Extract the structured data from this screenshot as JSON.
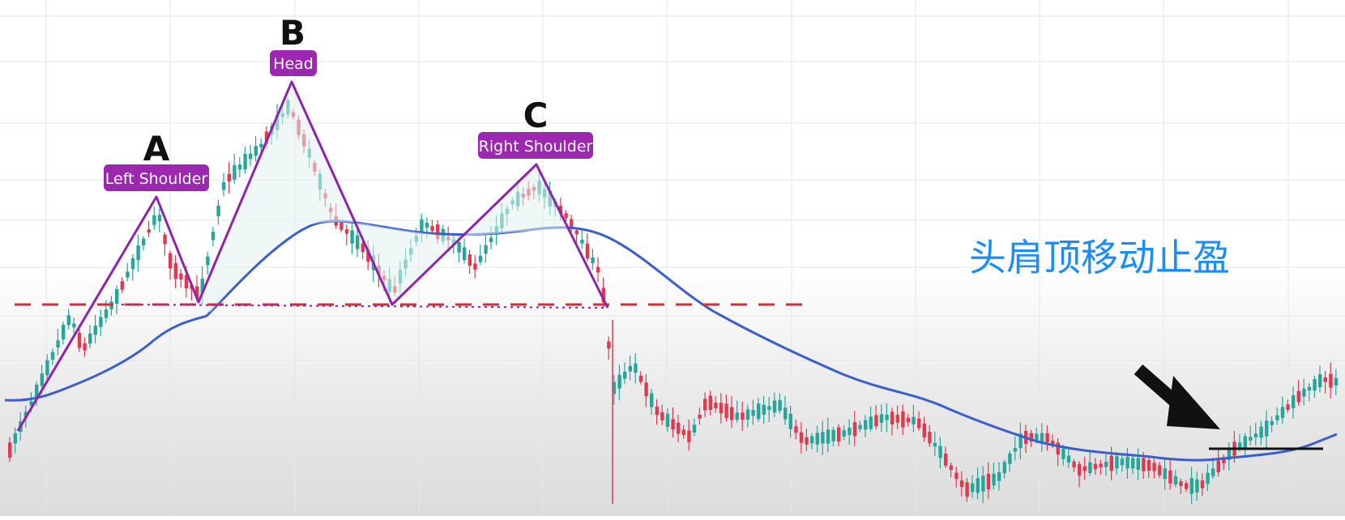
{
  "colors": {
    "up": "#26a69a",
    "down": "#e0394f",
    "ma": "#3a5fcd",
    "pattern": "#8e24aa",
    "label_bg": "#9c27b0",
    "neckline": "#d32f3a",
    "annotation": "#1a8cff",
    "arrow": "#111111"
  },
  "labels": {
    "peak_a": "A",
    "peak_b": "B",
    "peak_c": "C",
    "left_shoulder": "Left Shoulder",
    "head": "Head",
    "right_shoulder": "Right Shoulder",
    "annotation": "头肩顶移动止盈"
  },
  "icons": {
    "pointer": "arrow-down-right-icon"
  },
  "chart_data": {
    "type": "candlestick",
    "title": "",
    "xlabel": "",
    "ylabel": "",
    "grid": true,
    "indicators": [
      "moving-average"
    ],
    "pattern": "head-and-shoulders",
    "points": {
      "left_shoulder": "A",
      "head": "B",
      "right_shoulder": "C"
    }
  }
}
